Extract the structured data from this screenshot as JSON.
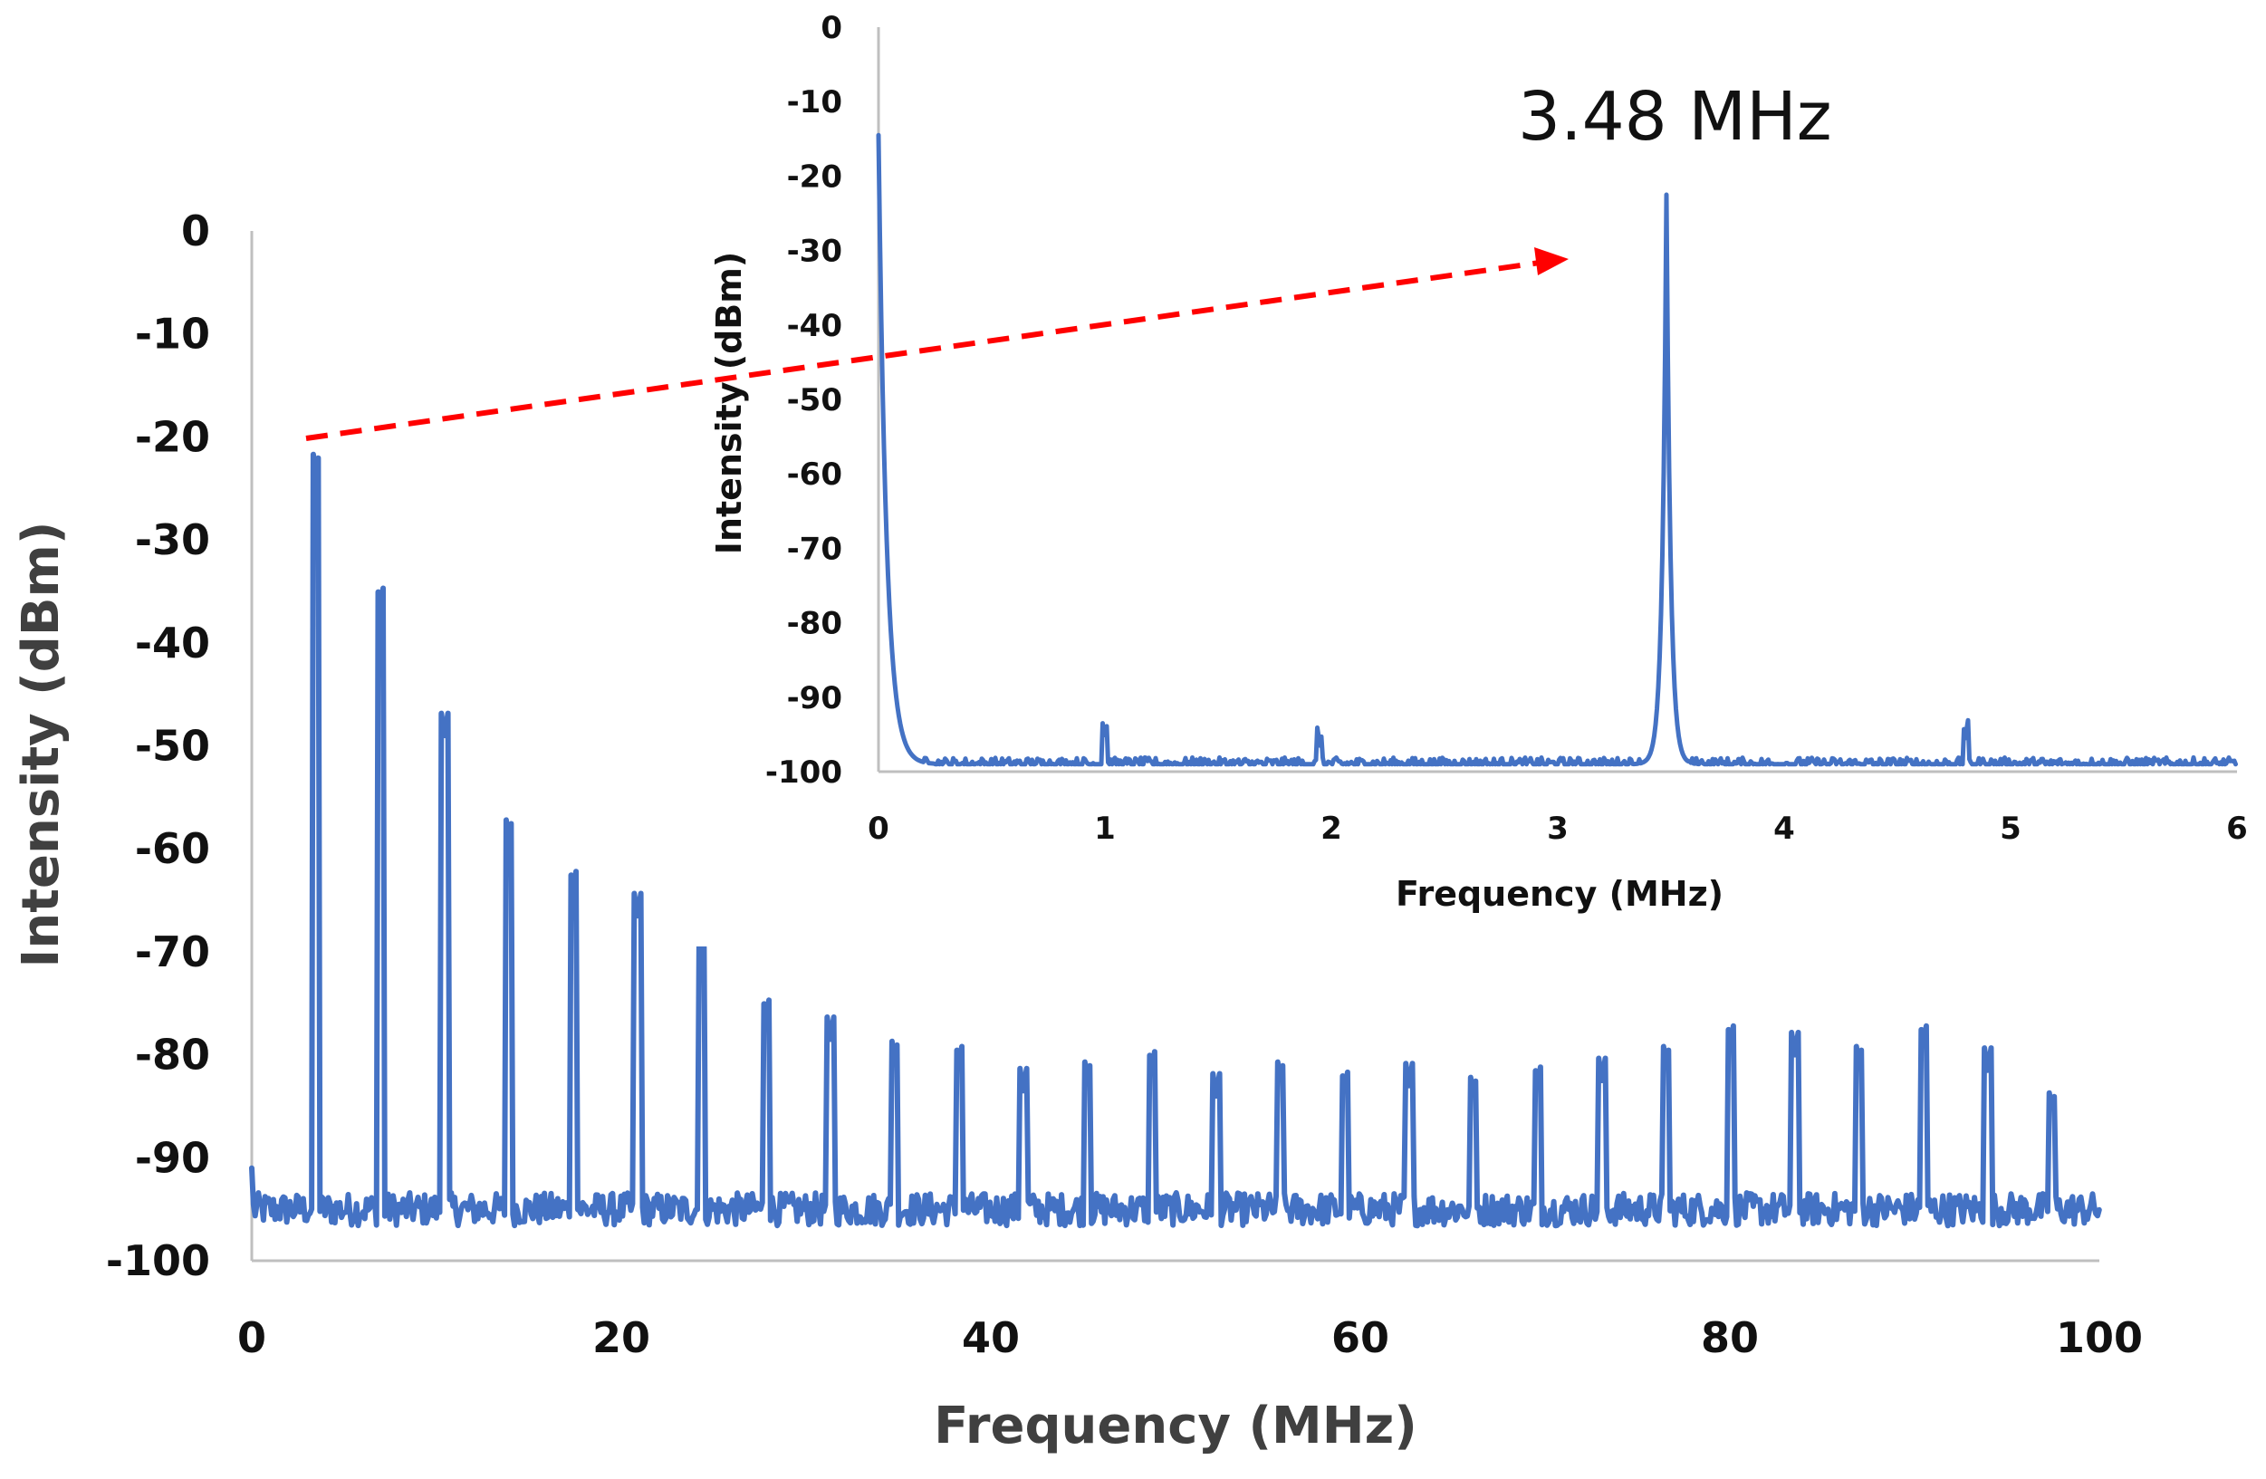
{
  "chart_data": [
    {
      "type": "line",
      "role": "main",
      "title": "",
      "xlabel": "Frequency (MHz)",
      "ylabel": "Intensity (dBm)",
      "xlim": [
        0,
        100
      ],
      "ylim": [
        -100,
        0
      ],
      "xticks": [
        0,
        20,
        40,
        60,
        80,
        100
      ],
      "yticks": [
        0,
        -10,
        -20,
        -30,
        -40,
        -50,
        -60,
        -70,
        -80,
        -90,
        -100
      ],
      "grid": false,
      "color": "#4472C4",
      "noise_floor": -95,
      "peaks": [
        {
          "x": 3.48,
          "y": -23.5
        },
        {
          "x": 6.96,
          "y": -36.5
        },
        {
          "x": 10.44,
          "y": -49
        },
        {
          "x": 13.92,
          "y": -59
        },
        {
          "x": 17.4,
          "y": -64
        },
        {
          "x": 20.88,
          "y": -66.5
        },
        {
          "x": 24.36,
          "y": -71
        },
        {
          "x": 27.84,
          "y": -76.5
        },
        {
          "x": 31.32,
          "y": -78.5
        },
        {
          "x": 34.8,
          "y": -80.5
        },
        {
          "x": 38.28,
          "y": -81
        },
        {
          "x": 41.76,
          "y": -83.5
        },
        {
          "x": 45.24,
          "y": -82.5
        },
        {
          "x": 48.72,
          "y": -81.5
        },
        {
          "x": 52.2,
          "y": -84
        },
        {
          "x": 55.68,
          "y": -82.5
        },
        {
          "x": 59.16,
          "y": -83.5
        },
        {
          "x": 62.64,
          "y": -83
        },
        {
          "x": 66.12,
          "y": -84
        },
        {
          "x": 69.6,
          "y": -83
        },
        {
          "x": 73.08,
          "y": -82.5
        },
        {
          "x": 76.56,
          "y": -81
        },
        {
          "x": 80.04,
          "y": -79
        },
        {
          "x": 83.52,
          "y": -80
        },
        {
          "x": 87.0,
          "y": -81
        },
        {
          "x": 90.48,
          "y": -79
        },
        {
          "x": 93.96,
          "y": -81.5
        },
        {
          "x": 97.44,
          "y": -85.5
        }
      ],
      "start_value": -91,
      "x_end": 100
    },
    {
      "type": "line",
      "role": "inset",
      "title": "",
      "xlabel": "Frequency (MHz)",
      "ylabel": "Intensity (dBm)",
      "xlim": [
        0,
        6
      ],
      "ylim": [
        -100,
        0
      ],
      "xticks": [
        0,
        1,
        2,
        3,
        4,
        5,
        6
      ],
      "yticks": [
        0,
        -10,
        -20,
        -30,
        -40,
        -50,
        -60,
        -70,
        -80,
        -90,
        -100
      ],
      "grid": false,
      "color": "#4472C4",
      "noise_floor": -99,
      "peaks": [
        {
          "x": 0.0,
          "y": -14.5
        },
        {
          "x": 3.48,
          "y": -22.5
        }
      ],
      "spurs": [
        {
          "x": 1.0,
          "y": -95.5
        },
        {
          "x": 1.95,
          "y": -96.5
        },
        {
          "x": 4.8,
          "y": -95.5
        }
      ]
    }
  ],
  "annotation": {
    "text": "3.48 MHz",
    "arrow_color": "#FF0000"
  }
}
